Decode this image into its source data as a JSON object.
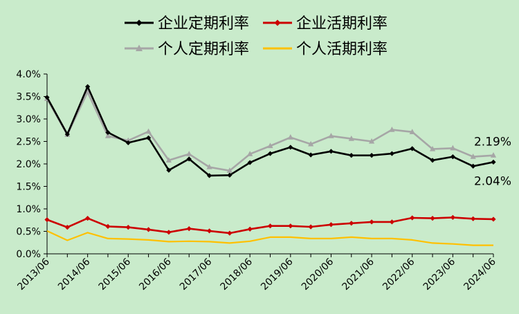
{
  "chart_data": {
    "type": "line",
    "title": "",
    "xlabel": "",
    "ylabel": "",
    "x": [
      "2013/06",
      "2013/12",
      "2014/06",
      "2014/12",
      "2015/06",
      "2015/12",
      "2016/06",
      "2016/12",
      "2017/06",
      "2017/12",
      "2018/06",
      "2018/12",
      "2019/06",
      "2019/12",
      "2020/06",
      "2020/12",
      "2021/06",
      "2021/12",
      "2022/06",
      "2022/12",
      "2023/06",
      "2023/12",
      "2024/06"
    ],
    "x_tick_labels": [
      "2013/06",
      "2014/06",
      "2015/06",
      "2016/06",
      "2017/06",
      "2018/06",
      "2019/06",
      "2020/06",
      "2021/06",
      "2022/06",
      "2023/06",
      "2024/06"
    ],
    "y_tick_labels": [
      "0.0%",
      "0.5%",
      "1.0%",
      "1.5%",
      "2.0%",
      "2.5%",
      "3.0%",
      "3.5%",
      "4.0%"
    ],
    "ylim": [
      0,
      4.0
    ],
    "y_unit": "%",
    "grid": false,
    "legend_position": "top",
    "series": [
      {
        "name": "企业定期利率",
        "color": "#000000",
        "marker": "diamond",
        "values": [
          3.48,
          2.66,
          3.72,
          2.7,
          2.47,
          2.58,
          1.86,
          2.11,
          1.74,
          1.75,
          2.03,
          2.23,
          2.37,
          2.2,
          2.28,
          2.19,
          2.19,
          2.23,
          2.34,
          2.08,
          2.16,
          1.95,
          2.04
        ]
      },
      {
        "name": "企业活期利率",
        "color": "#CC0000",
        "marker": "diamond",
        "values": [
          0.76,
          0.59,
          0.79,
          0.61,
          0.59,
          0.54,
          0.48,
          0.56,
          0.51,
          0.46,
          0.55,
          0.62,
          0.62,
          0.6,
          0.65,
          0.68,
          0.71,
          0.71,
          0.8,
          0.79,
          0.81,
          0.78,
          0.77
        ]
      },
      {
        "name": "个人定期利率",
        "color": "#A6A6A6",
        "marker": "triangle",
        "values": [
          3.45,
          2.65,
          3.6,
          2.62,
          2.52,
          2.72,
          2.08,
          2.22,
          1.93,
          1.85,
          2.22,
          2.4,
          2.59,
          2.44,
          2.62,
          2.56,
          2.5,
          2.76,
          2.71,
          2.33,
          2.35,
          2.16,
          2.19
        ]
      },
      {
        "name": "个人活期利率",
        "color": "#FFC000",
        "marker": "none",
        "values": [
          0.51,
          0.3,
          0.47,
          0.34,
          0.33,
          0.31,
          0.27,
          0.28,
          0.27,
          0.24,
          0.28,
          0.37,
          0.37,
          0.34,
          0.34,
          0.37,
          0.34,
          0.34,
          0.31,
          0.24,
          0.22,
          0.19,
          0.19
        ]
      }
    ],
    "annotations": [
      {
        "text": "2.19%",
        "series": "个人定期利率",
        "index": 22,
        "place": "above"
      },
      {
        "text": "2.04%",
        "series": "企业定期利率",
        "index": 22,
        "place": "below"
      }
    ]
  }
}
